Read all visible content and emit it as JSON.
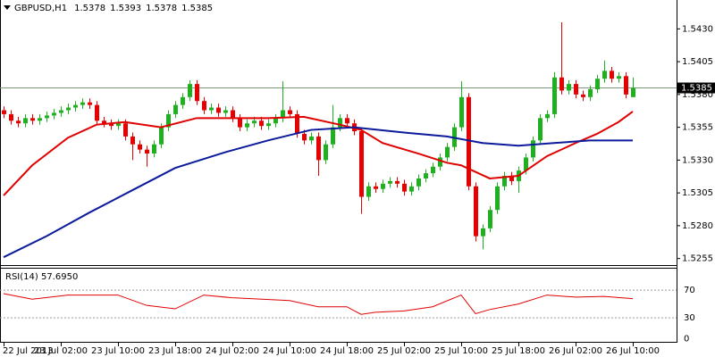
{
  "chart_data": [
    {
      "type": "candlestick",
      "symbol": "GBPUSD,H1",
      "ohlc_header": [
        1.5378,
        1.5393,
        1.5378,
        1.5385
      ],
      "categories": [
        "22 Jul 2013",
        null,
        null,
        null,
        null,
        null,
        null,
        null,
        "23 Jul 02:00",
        null,
        null,
        null,
        null,
        null,
        null,
        null,
        "23 Jul 10:00",
        null,
        null,
        null,
        null,
        null,
        null,
        null,
        "23 Jul 18:00",
        null,
        null,
        null,
        null,
        null,
        null,
        null,
        "24 Jul 02:00",
        null,
        null,
        null,
        null,
        null,
        null,
        null,
        "24 Jul 10:00",
        null,
        null,
        null,
        null,
        null,
        null,
        null,
        "24 Jul 18:00",
        null,
        null,
        null,
        null,
        null,
        null,
        null,
        "25 Jul 02:00",
        null,
        null,
        null,
        null,
        null,
        null,
        null,
        "25 Jul 10:00",
        null,
        null,
        null,
        null,
        null,
        null,
        null,
        "25 Jul 18:00",
        null,
        null,
        null,
        null,
        null,
        null,
        null,
        "26 Jul 02:00",
        null,
        null,
        null,
        null,
        null,
        null,
        null,
        "26 Jul 10:00"
      ],
      "open": [
        1.5368,
        1.5365,
        1.536,
        1.5358,
        1.5362,
        1.536,
        1.5362,
        1.5364,
        1.5366,
        1.5368,
        1.537,
        1.5372,
        1.5374,
        1.5372,
        1.536,
        1.5358,
        1.5356,
        1.5358,
        1.5348,
        1.5342,
        1.5338,
        1.5335,
        1.5342,
        1.5355,
        1.5365,
        1.5372,
        1.5378,
        1.5388,
        1.5375,
        1.5368,
        1.537,
        1.5366,
        1.5368,
        1.5362,
        1.5355,
        1.5358,
        1.536,
        1.5356,
        1.5358,
        1.5362,
        1.5368,
        1.5365,
        1.535,
        1.5345,
        1.5348,
        1.533,
        1.5342,
        1.5355,
        1.5362,
        1.5358,
        1.5352,
        1.5302,
        1.531,
        1.5308,
        1.5312,
        1.5314,
        1.5312,
        1.5306,
        1.531,
        1.5316,
        1.532,
        1.5325,
        1.5332,
        1.534,
        1.5355,
        1.5378,
        1.531,
        1.5272,
        1.5278,
        1.5292,
        1.531,
        1.5318,
        1.5314,
        1.5322,
        1.5332,
        1.5345,
        1.5362,
        1.5365,
        1.5393,
        1.5383,
        1.5388,
        1.538,
        1.5378,
        1.5384,
        1.5392,
        1.5398,
        1.5392,
        1.5394,
        1.5378
      ],
      "high": [
        1.5371,
        1.5368,
        1.5363,
        1.5365,
        1.5365,
        1.5365,
        1.5367,
        1.5369,
        1.5371,
        1.5373,
        1.5375,
        1.5377,
        1.5377,
        1.5375,
        1.5363,
        1.5361,
        1.5361,
        1.5361,
        1.5351,
        1.5345,
        1.5341,
        1.5345,
        1.5358,
        1.5368,
        1.5375,
        1.5381,
        1.5391,
        1.5391,
        1.5378,
        1.5373,
        1.5373,
        1.5371,
        1.5371,
        1.5365,
        1.5361,
        1.5363,
        1.5363,
        1.5361,
        1.5365,
        1.539,
        1.5371,
        1.5368,
        1.5353,
        1.5351,
        1.5351,
        1.5345,
        1.5372,
        1.5365,
        1.5365,
        1.5361,
        1.5355,
        1.5313,
        1.5313,
        1.5315,
        1.5317,
        1.5317,
        1.5315,
        1.5313,
        1.5319,
        1.5323,
        1.5328,
        1.5335,
        1.5343,
        1.5358,
        1.539,
        1.5381,
        1.5313,
        1.5281,
        1.5295,
        1.5313,
        1.5321,
        1.5321,
        1.5325,
        1.5335,
        1.5348,
        1.5365,
        1.5368,
        1.5397,
        1.5435,
        1.5391,
        1.5391,
        1.5383,
        1.5387,
        1.5395,
        1.5406,
        1.5401,
        1.5397,
        1.5397,
        1.5393
      ],
      "low": [
        1.5362,
        1.5357,
        1.5355,
        1.5355,
        1.5357,
        1.5357,
        1.5359,
        1.5361,
        1.5363,
        1.5365,
        1.5367,
        1.5369,
        1.5369,
        1.5357,
        1.5355,
        1.5353,
        1.5353,
        1.5345,
        1.533,
        1.5335,
        1.5325,
        1.5332,
        1.5339,
        1.5352,
        1.5362,
        1.5369,
        1.5375,
        1.5372,
        1.5365,
        1.5365,
        1.5363,
        1.5363,
        1.5359,
        1.5352,
        1.5352,
        1.5355,
        1.5353,
        1.5353,
        1.5355,
        1.5359,
        1.5362,
        1.5347,
        1.5342,
        1.5342,
        1.5318,
        1.5327,
        1.5339,
        1.5352,
        1.5355,
        1.5349,
        1.5289,
        1.5299,
        1.5305,
        1.5305,
        1.5309,
        1.5309,
        1.5303,
        1.5303,
        1.5307,
        1.5313,
        1.5317,
        1.5322,
        1.5329,
        1.5337,
        1.5352,
        1.5307,
        1.5268,
        1.5262,
        1.5275,
        1.5289,
        1.5307,
        1.5311,
        1.5305,
        1.5319,
        1.5329,
        1.5342,
        1.5359,
        1.5362,
        1.538,
        1.538,
        1.5377,
        1.5375,
        1.5375,
        1.5381,
        1.5389,
        1.5389,
        1.5389,
        1.5377,
        1.5378
      ],
      "close": [
        1.5365,
        1.536,
        1.5358,
        1.5362,
        1.536,
        1.5362,
        1.5364,
        1.5366,
        1.5368,
        1.537,
        1.5372,
        1.5374,
        1.5372,
        1.536,
        1.5358,
        1.5356,
        1.5358,
        1.5348,
        1.5342,
        1.5338,
        1.5335,
        1.5342,
        1.5355,
        1.5365,
        1.5372,
        1.5378,
        1.5388,
        1.5375,
        1.5368,
        1.537,
        1.5366,
        1.5368,
        1.5362,
        1.5355,
        1.5358,
        1.536,
        1.5356,
        1.5358,
        1.5362,
        1.5368,
        1.5365,
        1.535,
        1.5345,
        1.5348,
        1.533,
        1.5342,
        1.5355,
        1.5362,
        1.5358,
        1.5352,
        1.5302,
        1.531,
        1.5308,
        1.5312,
        1.5314,
        1.5312,
        1.5306,
        1.531,
        1.5316,
        1.532,
        1.5325,
        1.5332,
        1.534,
        1.5355,
        1.5378,
        1.531,
        1.5272,
        1.5278,
        1.5292,
        1.531,
        1.5318,
        1.5314,
        1.5322,
        1.5332,
        1.5345,
        1.5362,
        1.5365,
        1.5393,
        1.5383,
        1.5388,
        1.538,
        1.5378,
        1.5384,
        1.5392,
        1.5398,
        1.5392,
        1.5394,
        1.538,
        1.5385
      ],
      "up_color": "#1fb01f",
      "down_color": "#e60000",
      "ma_lines": [
        {
          "color": "#e00000",
          "x": [
            0,
            4,
            9,
            13,
            17,
            22,
            27,
            32,
            37,
            42,
            47,
            50,
            53,
            58,
            62,
            64,
            68,
            72,
            76,
            80,
            83,
            86,
            88
          ],
          "values": [
            1.5303,
            1.5326,
            1.5347,
            1.5357,
            1.5359,
            1.5355,
            1.5362,
            1.5362,
            1.5362,
            1.5363,
            1.5357,
            1.5353,
            1.5343,
            1.5335,
            1.5328,
            1.5326,
            1.5316,
            1.5318,
            1.5333,
            1.5343,
            1.535,
            1.5359,
            1.5367
          ]
        },
        {
          "color": "#0c1a9c",
          "x": [
            0,
            6,
            12,
            18,
            24,
            31,
            37,
            43,
            49,
            56,
            62,
            67,
            72,
            77,
            82,
            88
          ],
          "values": [
            1.5256,
            1.5272,
            1.529,
            1.5307,
            1.5324,
            1.5336,
            1.5345,
            1.5353,
            1.5355,
            1.5351,
            1.5348,
            1.5343,
            1.5341,
            1.5343,
            1.5345,
            1.5345
          ]
        }
      ],
      "last_price": 1.5385,
      "ylim": [
        1.525,
        1.5452
      ],
      "yticks": [
        {
          "value": 1.543,
          "label": "1.5430"
        },
        1.5405,
        {
          "value": 1.538,
          "label": "1.5380"
        },
        1.5355,
        {
          "value": 1.533,
          "label": "1.5330"
        },
        1.5305,
        {
          "value": 1.528,
          "label": "1.5280"
        },
        1.5255
      ]
    },
    {
      "type": "line",
      "title": "RSI(14) 57.6950",
      "color": "#e00000",
      "x": [
        0,
        4,
        9,
        16,
        20,
        24,
        28,
        32,
        40,
        44,
        48,
        50,
        52,
        56,
        60,
        64,
        66,
        68,
        72,
        76,
        80,
        84,
        88
      ],
      "values": [
        65,
        57,
        63,
        63,
        48,
        43,
        63,
        59,
        55,
        46,
        46,
        35,
        38,
        40,
        46,
        63,
        36,
        42,
        50,
        63,
        60,
        61,
        57.695
      ],
      "ylim": [
        0,
        100
      ],
      "yticks": [
        0,
        30,
        70
      ]
    }
  ]
}
